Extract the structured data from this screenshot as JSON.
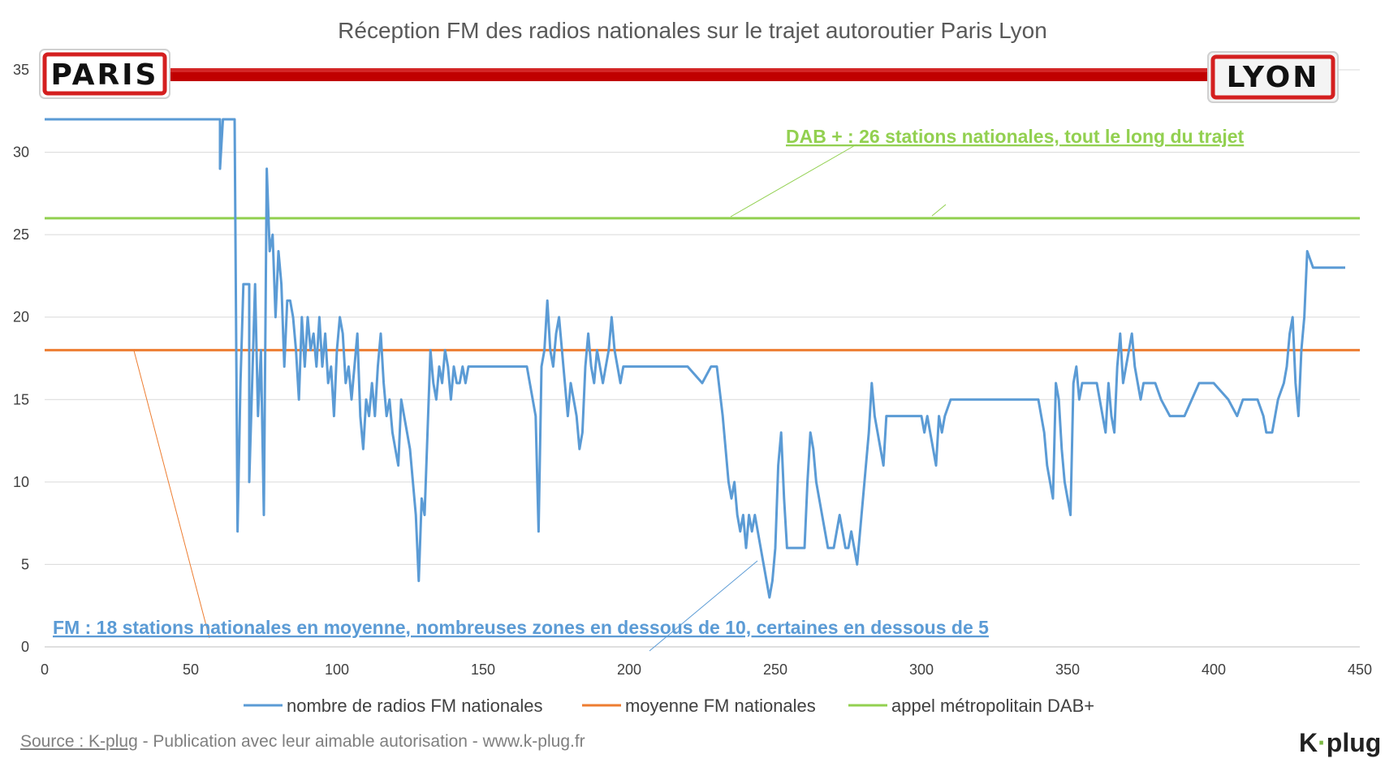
{
  "chart_data": {
    "type": "line",
    "title": "Réception FM des radios nationales sur le trajet autoroutier Paris Lyon",
    "xlim": [
      0,
      450
    ],
    "ylim": [
      0,
      35
    ],
    "x_ticks": [
      0,
      50,
      100,
      150,
      200,
      250,
      300,
      350,
      400,
      450
    ],
    "y_ticks": [
      0,
      5,
      10,
      15,
      20,
      25,
      30,
      35
    ],
    "grid": "horizontal",
    "legend_position": "bottom",
    "series": [
      {
        "name": "nombre de radios FM nationales",
        "color": "#5b9bd5",
        "points": [
          [
            0,
            32
          ],
          [
            60,
            32
          ],
          [
            60,
            29
          ],
          [
            61,
            32
          ],
          [
            65,
            32
          ],
          [
            66,
            7
          ],
          [
            67,
            16
          ],
          [
            68,
            22
          ],
          [
            70,
            22
          ],
          [
            70,
            10
          ],
          [
            71,
            16
          ],
          [
            72,
            22
          ],
          [
            73,
            14
          ],
          [
            74,
            18
          ],
          [
            75,
            8
          ],
          [
            76,
            29
          ],
          [
            77,
            24
          ],
          [
            78,
            25
          ],
          [
            79,
            20
          ],
          [
            80,
            24
          ],
          [
            81,
            22
          ],
          [
            82,
            17
          ],
          [
            83,
            21
          ],
          [
            84,
            21
          ],
          [
            85,
            20
          ],
          [
            86,
            18
          ],
          [
            87,
            15
          ],
          [
            88,
            20
          ],
          [
            89,
            17
          ],
          [
            90,
            20
          ],
          [
            91,
            18
          ],
          [
            92,
            19
          ],
          [
            93,
            17
          ],
          [
            94,
            20
          ],
          [
            95,
            17
          ],
          [
            96,
            19
          ],
          [
            97,
            16
          ],
          [
            98,
            17
          ],
          [
            99,
            14
          ],
          [
            100,
            18
          ],
          [
            101,
            20
          ],
          [
            102,
            19
          ],
          [
            103,
            16
          ],
          [
            104,
            17
          ],
          [
            105,
            15
          ],
          [
            106,
            17
          ],
          [
            107,
            19
          ],
          [
            108,
            14
          ],
          [
            109,
            12
          ],
          [
            110,
            15
          ],
          [
            111,
            14
          ],
          [
            112,
            16
          ],
          [
            113,
            14
          ],
          [
            114,
            17
          ],
          [
            115,
            19
          ],
          [
            116,
            16
          ],
          [
            117,
            14
          ],
          [
            118,
            15
          ],
          [
            119,
            13
          ],
          [
            120,
            12
          ],
          [
            121,
            11
          ],
          [
            122,
            15
          ],
          [
            123,
            14
          ],
          [
            124,
            13
          ],
          [
            125,
            12
          ],
          [
            126,
            10
          ],
          [
            127,
            8
          ],
          [
            128,
            4
          ],
          [
            129,
            9
          ],
          [
            130,
            8
          ],
          [
            131,
            13
          ],
          [
            132,
            18
          ],
          [
            133,
            16
          ],
          [
            134,
            15
          ],
          [
            135,
            17
          ],
          [
            136,
            16
          ],
          [
            137,
            18
          ],
          [
            138,
            17
          ],
          [
            139,
            15
          ],
          [
            140,
            17
          ],
          [
            141,
            16
          ],
          [
            142,
            16
          ],
          [
            143,
            17
          ],
          [
            144,
            16
          ],
          [
            145,
            17
          ],
          [
            150,
            17
          ],
          [
            160,
            17
          ],
          [
            165,
            17
          ],
          [
            168,
            14
          ],
          [
            169,
            7
          ],
          [
            170,
            17
          ],
          [
            171,
            18
          ],
          [
            172,
            21
          ],
          [
            173,
            18
          ],
          [
            174,
            17
          ],
          [
            175,
            19
          ],
          [
            176,
            20
          ],
          [
            177,
            18
          ],
          [
            178,
            16
          ],
          [
            179,
            14
          ],
          [
            180,
            16
          ],
          [
            181,
            15
          ],
          [
            182,
            14
          ],
          [
            183,
            12
          ],
          [
            184,
            13
          ],
          [
            185,
            17
          ],
          [
            186,
            19
          ],
          [
            187,
            17
          ],
          [
            188,
            16
          ],
          [
            189,
            18
          ],
          [
            190,
            17
          ],
          [
            191,
            16
          ],
          [
            192,
            17
          ],
          [
            193,
            18
          ],
          [
            194,
            20
          ],
          [
            195,
            18
          ],
          [
            196,
            17
          ],
          [
            197,
            16
          ],
          [
            198,
            17
          ],
          [
            200,
            17
          ],
          [
            204,
            17
          ],
          [
            205,
            17
          ],
          [
            210,
            17
          ],
          [
            220,
            17
          ],
          [
            225,
            16
          ],
          [
            228,
            17
          ],
          [
            230,
            17
          ],
          [
            232,
            14
          ],
          [
            233,
            12
          ],
          [
            234,
            10
          ],
          [
            235,
            9
          ],
          [
            236,
            10
          ],
          [
            237,
            8
          ],
          [
            238,
            7
          ],
          [
            239,
            8
          ],
          [
            240,
            6
          ],
          [
            241,
            8
          ],
          [
            242,
            7
          ],
          [
            243,
            8
          ],
          [
            244,
            7
          ],
          [
            245,
            6
          ],
          [
            246,
            5
          ],
          [
            247,
            4
          ],
          [
            248,
            3
          ],
          [
            249,
            4
          ],
          [
            250,
            6
          ],
          [
            251,
            11
          ],
          [
            252,
            13
          ],
          [
            253,
            9
          ],
          [
            254,
            6
          ],
          [
            260,
            6
          ],
          [
            261,
            10
          ],
          [
            262,
            13
          ],
          [
            263,
            12
          ],
          [
            264,
            10
          ],
          [
            265,
            9
          ],
          [
            266,
            8
          ],
          [
            267,
            7
          ],
          [
            268,
            6
          ],
          [
            270,
            6
          ],
          [
            271,
            7
          ],
          [
            272,
            8
          ],
          [
            273,
            7
          ],
          [
            274,
            6
          ],
          [
            275,
            6
          ],
          [
            276,
            7
          ],
          [
            277,
            6
          ],
          [
            278,
            5
          ],
          [
            279,
            7
          ],
          [
            280,
            9
          ],
          [
            281,
            11
          ],
          [
            282,
            13
          ],
          [
            283,
            16
          ],
          [
            284,
            14
          ],
          [
            285,
            13
          ],
          [
            286,
            12
          ],
          [
            287,
            11
          ],
          [
            288,
            14
          ],
          [
            290,
            14
          ],
          [
            295,
            14
          ],
          [
            300,
            14
          ],
          [
            301,
            13
          ],
          [
            302,
            14
          ],
          [
            303,
            13
          ],
          [
            304,
            12
          ],
          [
            305,
            11
          ],
          [
            306,
            14
          ],
          [
            307,
            13
          ],
          [
            308,
            14
          ],
          [
            310,
            15
          ],
          [
            320,
            15
          ],
          [
            330,
            15
          ],
          [
            340,
            15
          ],
          [
            341,
            14
          ],
          [
            342,
            13
          ],
          [
            343,
            11
          ],
          [
            344,
            10
          ],
          [
            345,
            9
          ],
          [
            346,
            16
          ],
          [
            347,
            15
          ],
          [
            348,
            12
          ],
          [
            349,
            10
          ],
          [
            350,
            9
          ],
          [
            351,
            8
          ],
          [
            352,
            16
          ],
          [
            353,
            17
          ],
          [
            354,
            15
          ],
          [
            355,
            16
          ],
          [
            360,
            16
          ],
          [
            362,
            14
          ],
          [
            363,
            13
          ],
          [
            364,
            16
          ],
          [
            365,
            14
          ],
          [
            366,
            13
          ],
          [
            367,
            17
          ],
          [
            368,
            19
          ],
          [
            369,
            16
          ],
          [
            370,
            17
          ],
          [
            371,
            18
          ],
          [
            372,
            19
          ],
          [
            373,
            17
          ],
          [
            374,
            16
          ],
          [
            375,
            15
          ],
          [
            376,
            16
          ],
          [
            380,
            16
          ],
          [
            382,
            15
          ],
          [
            385,
            14
          ],
          [
            390,
            14
          ],
          [
            395,
            16
          ],
          [
            400,
            16
          ],
          [
            405,
            15
          ],
          [
            408,
            14
          ],
          [
            410,
            15
          ],
          [
            415,
            15
          ],
          [
            417,
            14
          ],
          [
            418,
            13
          ],
          [
            420,
            13
          ],
          [
            422,
            15
          ],
          [
            424,
            16
          ],
          [
            425,
            17
          ],
          [
            426,
            19
          ],
          [
            427,
            20
          ],
          [
            428,
            16
          ],
          [
            429,
            14
          ],
          [
            430,
            18
          ],
          [
            431,
            20
          ],
          [
            432,
            24
          ],
          [
            434,
            23
          ],
          [
            440,
            23
          ],
          [
            445,
            23
          ]
        ]
      },
      {
        "name": "moyenne FM nationales",
        "color": "#ed7d31",
        "value": 18
      },
      {
        "name": "appel métropolitain DAB+",
        "color": "#92d050",
        "value": 26
      }
    ],
    "annotations": {
      "dab": "DAB + : 26 stations nationales, tout le long du trajet",
      "fm_part1": "FM : 18 stations nationales en moyenne",
      "fm_part2": ", nombreuses zones en dessous de 10, certaines en dessous de 5"
    },
    "signs": {
      "start": "PARIS",
      "end": "LYON"
    }
  },
  "footer": {
    "source_link": "Source : K-plug",
    "source_rest": " - Publication avec leur aimable autorisation - www.k-plug.fr",
    "logo_k": "K",
    "logo_o": "·",
    "logo_rest": "plug"
  }
}
